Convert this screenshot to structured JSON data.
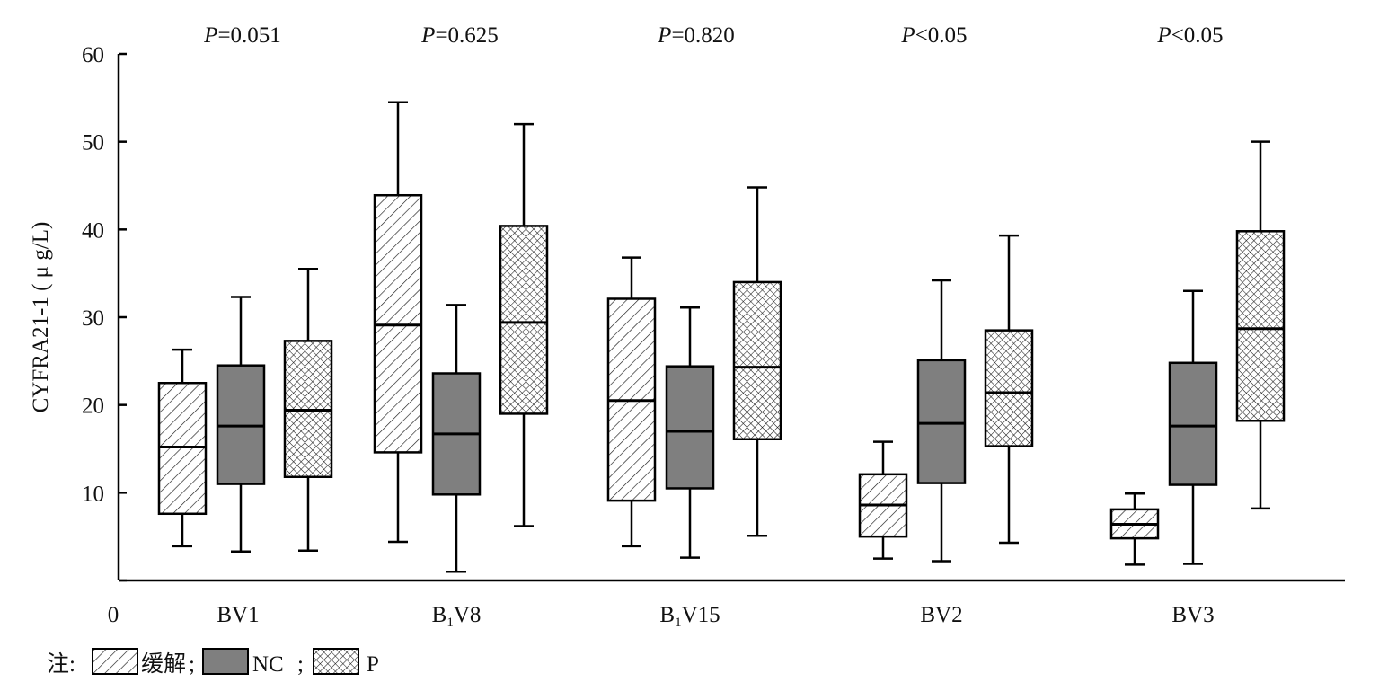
{
  "chart_data": {
    "type": "box",
    "ylabel": "CYFRA21-1 ( μ g/L)",
    "ylim": [
      0,
      60
    ],
    "yticks": [
      "0",
      "10",
      "20",
      "30",
      "40",
      "50",
      "60"
    ],
    "x_origin_label": "0",
    "grid": false,
    "categories": [
      {
        "label": "BV1",
        "sub": ""
      },
      {
        "label": "B",
        "sub": "1",
        "rest": "V8"
      },
      {
        "label": "B",
        "sub": "1",
        "rest": "V15"
      },
      {
        "label": "BV2",
        "sub": ""
      },
      {
        "label": "BV3",
        "sub": ""
      }
    ],
    "p_values": [
      {
        "italic": "P",
        "text": "=0.051"
      },
      {
        "italic": "P",
        "text": "=0.625"
      },
      {
        "italic": "P",
        "text": "=0.820"
      },
      {
        "italic": "P",
        "text": "<0.05"
      },
      {
        "italic": "P",
        "text": "<0.05"
      }
    ],
    "series": [
      {
        "name": "缓解",
        "pattern": "diagonal-hatch",
        "boxes": [
          {
            "min": 3.9,
            "q1": 7.6,
            "median": 15.2,
            "q3": 22.5,
            "max": 26.3
          },
          {
            "min": 4.4,
            "q1": 14.6,
            "median": 29.1,
            "q3": 43.9,
            "max": 54.5
          },
          {
            "min": 3.9,
            "q1": 9.1,
            "median": 20.5,
            "q3": 32.1,
            "max": 36.8
          },
          {
            "min": 2.5,
            "q1": 5.0,
            "median": 8.6,
            "q3": 12.1,
            "max": 15.8
          },
          {
            "min": 1.8,
            "q1": 4.8,
            "median": 6.4,
            "q3": 8.1,
            "max": 9.9
          }
        ]
      },
      {
        "name": "NC",
        "pattern": "solid-gray",
        "color": "#7f7f7f",
        "boxes": [
          {
            "min": 3.3,
            "q1": 11.0,
            "median": 17.6,
            "q3": 24.5,
            "max": 32.3
          },
          {
            "min": 1.0,
            "q1": 9.8,
            "median": 16.7,
            "q3": 23.6,
            "max": 31.4
          },
          {
            "min": 2.6,
            "q1": 10.5,
            "median": 17.0,
            "q3": 24.4,
            "max": 31.1
          },
          {
            "min": 2.2,
            "q1": 11.1,
            "median": 17.9,
            "q3": 25.1,
            "max": 34.2
          },
          {
            "min": 1.9,
            "q1": 10.9,
            "median": 17.6,
            "q3": 24.8,
            "max": 33.0
          }
        ]
      },
      {
        "name": "P",
        "pattern": "crosshatch",
        "boxes": [
          {
            "min": 3.4,
            "q1": 11.8,
            "median": 19.4,
            "q3": 27.3,
            "max": 35.5
          },
          {
            "min": 6.2,
            "q1": 19.0,
            "median": 29.4,
            "q3": 40.4,
            "max": 52.0
          },
          {
            "min": 5.1,
            "q1": 16.1,
            "median": 24.3,
            "q3": 34.0,
            "max": 44.8
          },
          {
            "min": 4.3,
            "q1": 15.3,
            "median": 21.4,
            "q3": 28.5,
            "max": 39.3
          },
          {
            "min": 8.2,
            "q1": 18.2,
            "median": 28.7,
            "q3": 39.8,
            "max": 50.0
          }
        ]
      }
    ],
    "legend": {
      "placement": "bottom-left",
      "prefix": "注:",
      "separator": ";"
    }
  }
}
